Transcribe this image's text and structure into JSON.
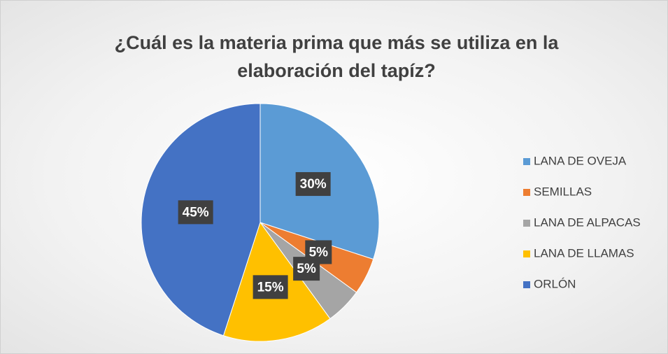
{
  "chart_data": {
    "type": "pie",
    "title": "¿Cuál es la materia prima que más se utiliza en la elaboración del tapíz?",
    "categories": [
      "LANA DE OVEJA",
      "SEMILLAS",
      "LANA DE ALPACAS",
      "LANA DE LLAMAS",
      "ORLÓN"
    ],
    "values": [
      30,
      5,
      5,
      15,
      45
    ],
    "value_labels": [
      "30%",
      "5%",
      "5%",
      "15%",
      "45%"
    ],
    "colors": [
      "#5b9bd5",
      "#ed7d31",
      "#a5a5a5",
      "#ffc000",
      "#4472c4"
    ],
    "legend": "right"
  }
}
